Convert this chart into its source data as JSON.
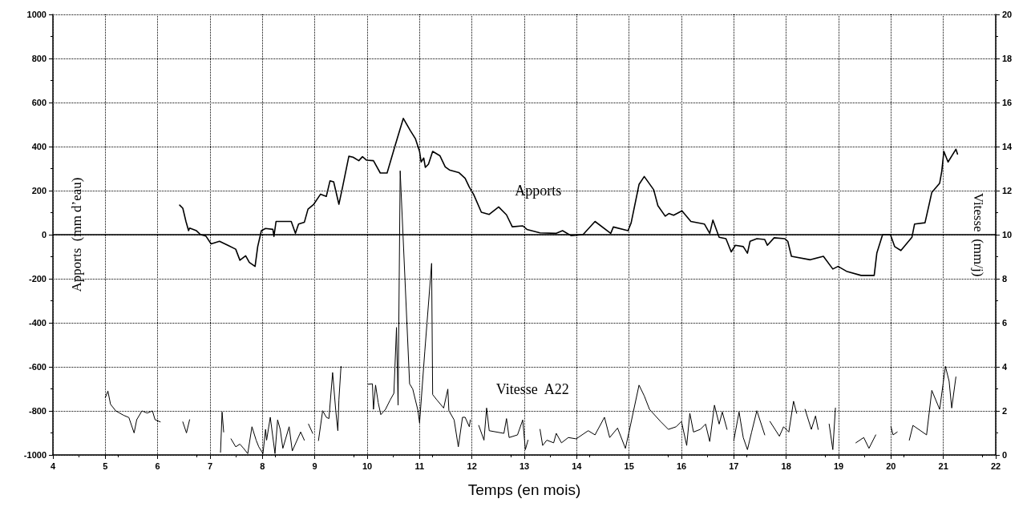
{
  "chart_data": {
    "type": "line",
    "xlabel": "Temps (en mois)",
    "ylabel": "Apports  (mm d’eau)",
    "y2label": "Vitesse  (mm/j)",
    "xlim": [
      4,
      22
    ],
    "xticks": [
      4,
      5,
      6,
      7,
      8,
      9,
      10,
      11,
      12,
      13,
      14,
      15,
      16,
      17,
      18,
      19,
      20,
      21,
      22
    ],
    "ylim": [
      -1000,
      1000
    ],
    "yticks": [
      -1000,
      -800,
      -600,
      -400,
      -200,
      0,
      200,
      400,
      600,
      800,
      1000
    ],
    "y2lim": [
      0,
      20
    ],
    "y2ticks": [
      0,
      2,
      4,
      6,
      8,
      10,
      12,
      14,
      16,
      18,
      20
    ],
    "grid": true,
    "legend": false,
    "marker": "none",
    "ref_lines": [
      {
        "axis": "y",
        "value": 0,
        "color": "#000000"
      }
    ],
    "series": [
      {
        "name": "Apports",
        "color": "#000000",
        "x": [
          6.42,
          6.48,
          6.54,
          6.59,
          6.61,
          6.74,
          6.82,
          6.92,
          7.02,
          7.18,
          7.34,
          7.49,
          7.57,
          7.68,
          7.75,
          7.86,
          7.91,
          7.98,
          8.06,
          8.2,
          8.22,
          8.26,
          8.55,
          8.63,
          8.69,
          8.8,
          8.87,
          8.98,
          9.11,
          9.22,
          9.29,
          9.36,
          9.46,
          9.53,
          9.65,
          9.73,
          9.84,
          9.91,
          9.99,
          10.12,
          10.25,
          10.38,
          10.53,
          10.69,
          10.82,
          10.92,
          11.0,
          11.03,
          11.08,
          11.11,
          11.17,
          11.25,
          11.39,
          11.49,
          11.57,
          11.75,
          11.87,
          11.95,
          12.03,
          12.18,
          12.33,
          12.51,
          12.66,
          12.77,
          12.97,
          13.05,
          13.3,
          13.61,
          13.73,
          13.89,
          14.12,
          14.35,
          14.65,
          14.7,
          14.98,
          15.04,
          15.19,
          15.29,
          15.47,
          15.55,
          15.69,
          15.76,
          15.85,
          16.01,
          16.18,
          16.44,
          16.54,
          16.6,
          16.72,
          16.85,
          16.95,
          17.03,
          17.18,
          17.26,
          17.31,
          17.44,
          17.59,
          17.64,
          17.77,
          17.97,
          18.03,
          18.1,
          18.46,
          18.71,
          18.89,
          18.99,
          19.15,
          19.43,
          19.68,
          19.73,
          19.84,
          19.99,
          20.07,
          20.19,
          20.4,
          20.45,
          20.65,
          20.78,
          20.93,
          20.97,
          21.01,
          21.09,
          21.24,
          21.27
        ],
        "values": [
          134,
          120,
          60,
          18,
          30,
          18,
          0,
          -6,
          -42,
          -30,
          -48,
          -66,
          -116,
          -96,
          -126,
          -144,
          -54,
          18,
          28,
          24,
          -8,
          60,
          60,
          6,
          48,
          56,
          116,
          138,
          184,
          174,
          244,
          240,
          138,
          216,
          356,
          352,
          336,
          354,
          338,
          336,
          280,
          280,
          402,
          528,
          474,
          436,
          378,
          330,
          348,
          306,
          320,
          378,
          358,
          308,
          294,
          282,
          256,
          216,
          184,
          102,
          92,
          126,
          90,
          36,
          40,
          24,
          8,
          6,
          18,
          -4,
          0,
          60,
          6,
          35,
          18,
          54,
          228,
          264,
          204,
          132,
          84,
          96,
          88,
          108,
          60,
          48,
          6,
          66,
          -12,
          -18,
          -78,
          -48,
          -54,
          -84,
          -30,
          -18,
          -22,
          -48,
          -14,
          -18,
          -30,
          -98,
          -114,
          -98,
          -156,
          -144,
          -166,
          -185,
          -185,
          -84,
          0,
          0,
          -54,
          -72,
          -12,
          48,
          54,
          192,
          234,
          288,
          378,
          330,
          388,
          366
        ]
      },
      {
        "name": "Vitesse  A22",
        "color": "#000000",
        "axis": "y2",
        "x": [
          5.0,
          5.05,
          5.1,
          5.2,
          5.35,
          5.45,
          5.55,
          5.6,
          5.7,
          5.8,
          5.9,
          5.95,
          6.05,
          6.3,
          6.48,
          6.55,
          6.61,
          6.9,
          7.2,
          7.23,
          7.26,
          7.33,
          7.4,
          7.49,
          7.57,
          7.64,
          7.72,
          7.8,
          7.88,
          7.93,
          8.01,
          8.06,
          8.08,
          8.15,
          8.24,
          8.29,
          8.34,
          8.39,
          8.51,
          8.57,
          8.73,
          8.8,
          8.84,
          8.88,
          8.96,
          9.02,
          9.07,
          9.15,
          9.22,
          9.27,
          9.34,
          9.4,
          9.44,
          9.46,
          9.5,
          9.76,
          10.02,
          10.1,
          10.12,
          10.16,
          10.21,
          10.26,
          10.35,
          10.44,
          10.51,
          10.56,
          10.59,
          10.63,
          10.81,
          10.87,
          10.97,
          11.0,
          11.1,
          11.23,
          11.25,
          11.33,
          11.46,
          11.54,
          11.56,
          11.66,
          11.74,
          11.82,
          11.87,
          11.95,
          11.97,
          12.05,
          12.13,
          12.23,
          12.28,
          12.33,
          12.61,
          12.66,
          12.71,
          12.87,
          12.97,
          13.02,
          13.07,
          13.18,
          13.3,
          13.35,
          13.43,
          13.56,
          13.61,
          13.71,
          13.84,
          13.99,
          14.22,
          14.35,
          14.53,
          14.63,
          14.78,
          14.93,
          15.01,
          15.19,
          15.29,
          15.39,
          15.6,
          15.75,
          15.9,
          16.0,
          16.1,
          16.16,
          16.23,
          16.36,
          16.46,
          16.54,
          16.63,
          16.72,
          16.78,
          16.87,
          16.94,
          17.0,
          17.1,
          17.18,
          17.26,
          17.34,
          17.44,
          17.59,
          17.64,
          17.69,
          17.87,
          17.95,
          18.05,
          18.14,
          18.2,
          18.28,
          18.36,
          18.48,
          18.56,
          18.61,
          18.72,
          18.82,
          18.89,
          18.94,
          19.14,
          19.33,
          19.48,
          19.58,
          19.71,
          19.86,
          20.0,
          20.04,
          20.12,
          20.24,
          20.35,
          20.42,
          20.68,
          20.78,
          20.93,
          21.04,
          21.11,
          21.16,
          21.24
        ],
        "values": [
          2.6,
          2.9,
          2.3,
          2.0,
          1.8,
          1.7,
          1.0,
          1.6,
          2.0,
          1.9,
          2.0,
          1.6,
          1.5,
          null,
          1.5,
          1.0,
          1.6,
          null,
          0.12,
          1.95,
          1.04,
          null,
          0.73,
          0.37,
          0.49,
          0.3,
          0.06,
          1.28,
          0.67,
          0.37,
          0.06,
          1.16,
          0.67,
          1.71,
          0.06,
          1.59,
          1.16,
          0.3,
          1.28,
          0.18,
          1.04,
          0.67,
          null,
          1.4,
          0.98,
          null,
          0.65,
          2.01,
          1.71,
          1.65,
          3.74,
          2.01,
          1.1,
          2.5,
          4.02,
          null,
          3.21,
          3.23,
          2.07,
          3.17,
          2.38,
          1.83,
          2.07,
          2.5,
          2.8,
          5.79,
          2.26,
          12.9,
          3.23,
          2.99,
          2.01,
          1.46,
          4.7,
          8.7,
          2.74,
          2.5,
          2.13,
          2.99,
          2.01,
          1.59,
          0.37,
          1.71,
          1.71,
          1.28,
          1.59,
          null,
          1.34,
          0.67,
          2.13,
          1.1,
          0.98,
          1.65,
          0.79,
          0.91,
          1.59,
          0.24,
          0.67,
          null,
          1.16,
          0.43,
          0.67,
          0.55,
          0.98,
          0.55,
          0.79,
          0.73,
          1.1,
          0.91,
          1.71,
          0.79,
          1.22,
          0.3,
          1.16,
          3.17,
          2.68,
          2.07,
          1.52,
          1.16,
          1.28,
          1.52,
          0.43,
          1.89,
          1.04,
          1.16,
          1.4,
          0.61,
          2.26,
          1.4,
          1.95,
          1.16,
          null,
          0.67,
          1.95,
          0.79,
          0.24,
          1.04,
          2.01,
          0.91,
          null,
          1.52,
          0.85,
          1.28,
          1.04,
          2.44,
          1.89,
          null,
          2.07,
          1.16,
          1.77,
          1.16,
          null,
          1.4,
          0.24,
          2.13,
          null,
          0.55,
          0.79,
          0.3,
          0.91,
          null,
          1.28,
          0.91,
          1.04,
          null,
          0.67,
          1.34,
          0.91,
          2.93,
          2.07,
          4.02,
          3.35,
          2.13,
          3.54
        ]
      }
    ]
  }
}
